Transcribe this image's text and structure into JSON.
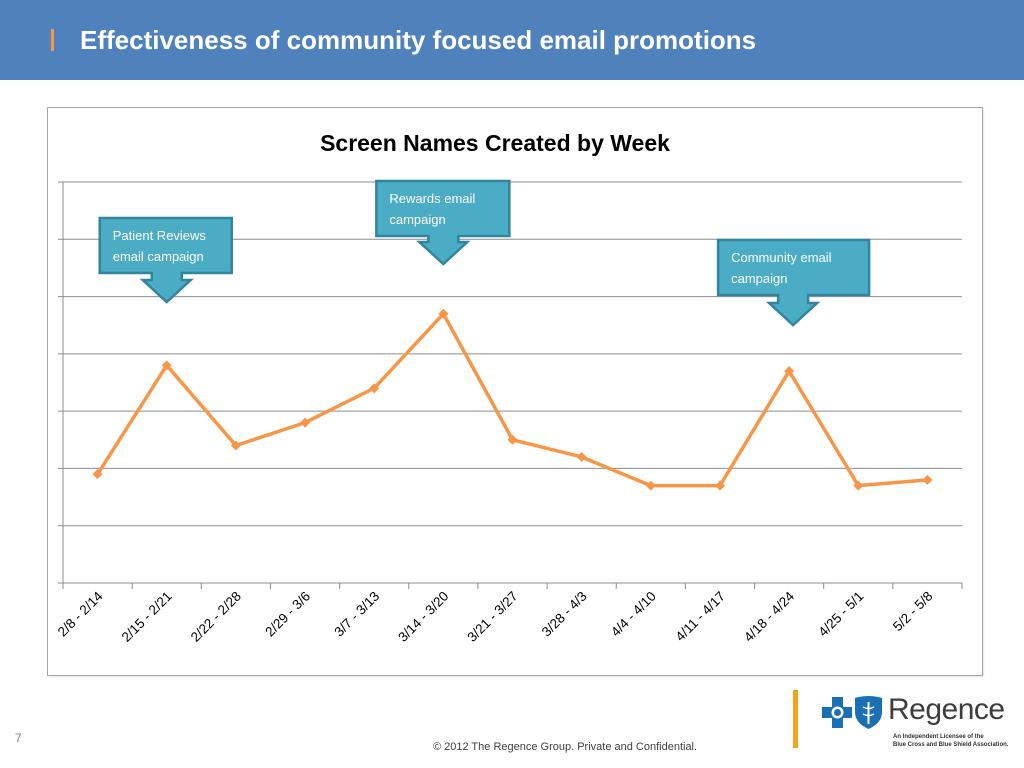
{
  "header": {
    "title": "Effectiveness of community focused email promotions"
  },
  "chart_data": {
    "type": "line",
    "title": "Screen Names Created by Week",
    "xlabel": "",
    "ylabel": "",
    "categories": [
      "2/8 - 2/14",
      "2/15 - 2/21",
      "2/22 - 2/28",
      "2/29 - 3/6",
      "3/7 - 3/13",
      "3/14 - 3/20",
      "3/21 - 3/27",
      "3/28 - 4/3",
      "4/4 - 4/10",
      "4/11 - 4/17",
      "4/18 - 4/24",
      "4/25 - 5/1",
      "5/2 - 5/8"
    ],
    "series": [
      {
        "values": [
          1.9,
          3.8,
          2.4,
          2.8,
          3.4,
          4.7,
          2.5,
          2.2,
          1.7,
          1.7,
          3.7,
          1.7,
          1.8
        ]
      }
    ],
    "ylim": [
      0,
      7
    ],
    "y_tick_labels_shown": false,
    "grid": true,
    "show_legend": false,
    "series_color": "#f79646",
    "annotations": [
      {
        "category": "2/15 - 2/21",
        "lines": [
          "Patient Reviews",
          "email campaign"
        ]
      },
      {
        "category": "3/14 - 3/20",
        "lines": [
          "Rewards email",
          "campaign"
        ]
      },
      {
        "category": "4/18 - 4/24",
        "lines": [
          "Community email",
          "campaign"
        ]
      }
    ]
  },
  "footer": {
    "page_number": "7",
    "copyright": "© 2012 The Regence Group. Private and Confidential."
  },
  "logo": {
    "name": "Regence",
    "tagline_lines": [
      "An Independent Licensee of the",
      "Blue Cross and Blue Shield Association."
    ],
    "icons": [
      "blue-cross-icon",
      "blue-shield-icon"
    ]
  },
  "colors": {
    "header_bg": "#4f81bd",
    "title_marker": "#f79646",
    "callout_fill": "#4bacc6",
    "callout_border": "#31859c",
    "footer_rule": "#f5a31a",
    "logo_blue": "#1a6fb5"
  }
}
